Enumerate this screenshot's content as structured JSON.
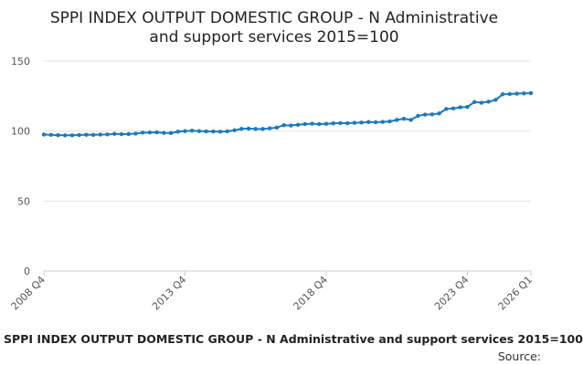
{
  "chart_data": {
    "type": "line",
    "title_lines": [
      "SPPI INDEX OUTPUT DOMESTIC GROUP - N Administrative",
      "and support services 2015=100"
    ],
    "caption": "SPPI INDEX OUTPUT DOMESTIC GROUP - N Administrative and support services 2015=100",
    "source_label": "Source:",
    "ylim": [
      0,
      150
    ],
    "yticks": [
      0,
      50,
      100,
      150
    ],
    "xticks": [
      {
        "index": 0,
        "label": "2008 Q4"
      },
      {
        "index": 20,
        "label": "2013 Q4"
      },
      {
        "index": 40,
        "label": "2018 Q4"
      },
      {
        "index": 60,
        "label": "2023 Q4"
      },
      {
        "index": 69,
        "label": "2026 Q1"
      }
    ],
    "grid": true,
    "line_color": "#1a7abf",
    "x": [
      "2008 Q4",
      "2009 Q1",
      "2009 Q2",
      "2009 Q3",
      "2009 Q4",
      "2010 Q1",
      "2010 Q2",
      "2010 Q3",
      "2010 Q4",
      "2011 Q1",
      "2011 Q2",
      "2011 Q3",
      "2011 Q4",
      "2012 Q1",
      "2012 Q2",
      "2012 Q3",
      "2012 Q4",
      "2013 Q1",
      "2013 Q2",
      "2013 Q3",
      "2013 Q4",
      "2014 Q1",
      "2014 Q2",
      "2014 Q3",
      "2014 Q4",
      "2015 Q1",
      "2015 Q2",
      "2015 Q3",
      "2015 Q4",
      "2016 Q1",
      "2016 Q2",
      "2016 Q3",
      "2016 Q4",
      "2017 Q1",
      "2017 Q2",
      "2017 Q3",
      "2017 Q4",
      "2018 Q1",
      "2018 Q2",
      "2018 Q3",
      "2018 Q4",
      "2019 Q1",
      "2019 Q2",
      "2019 Q3",
      "2019 Q4",
      "2020 Q1",
      "2020 Q2",
      "2020 Q3",
      "2020 Q4",
      "2021 Q1",
      "2021 Q2",
      "2021 Q3",
      "2021 Q4",
      "2022 Q1",
      "2022 Q2",
      "2022 Q3",
      "2022 Q4",
      "2023 Q1",
      "2023 Q2",
      "2023 Q3",
      "2023 Q4",
      "2024 Q1",
      "2024 Q2",
      "2024 Q3",
      "2024 Q4",
      "2025 Q1",
      "2025 Q2",
      "2025 Q3",
      "2025 Q4",
      "2026 Q1"
    ],
    "series": [
      {
        "values": [
          97.5,
          97.3,
          97.1,
          97.0,
          97.0,
          97.2,
          97.4,
          97.3,
          97.5,
          97.6,
          98.0,
          97.8,
          97.9,
          98.2,
          98.9,
          99.0,
          99.1,
          98.7,
          98.6,
          99.6,
          100.0,
          100.3,
          100.0,
          99.8,
          99.7,
          99.6,
          99.8,
          100.6,
          101.6,
          101.8,
          101.5,
          101.5,
          102.0,
          102.5,
          104.2,
          104.0,
          104.5,
          105.0,
          105.3,
          105.0,
          105.2,
          105.5,
          105.7,
          105.6,
          105.9,
          106.1,
          106.5,
          106.3,
          106.6,
          106.9,
          108.0,
          108.8,
          108.0,
          110.9,
          111.8,
          112.0,
          112.6,
          115.8,
          116.2,
          117.0,
          117.3,
          120.8,
          120.3,
          121.0,
          122.3,
          126.3,
          126.5,
          126.8,
          127.0,
          127.1
        ]
      }
    ]
  }
}
